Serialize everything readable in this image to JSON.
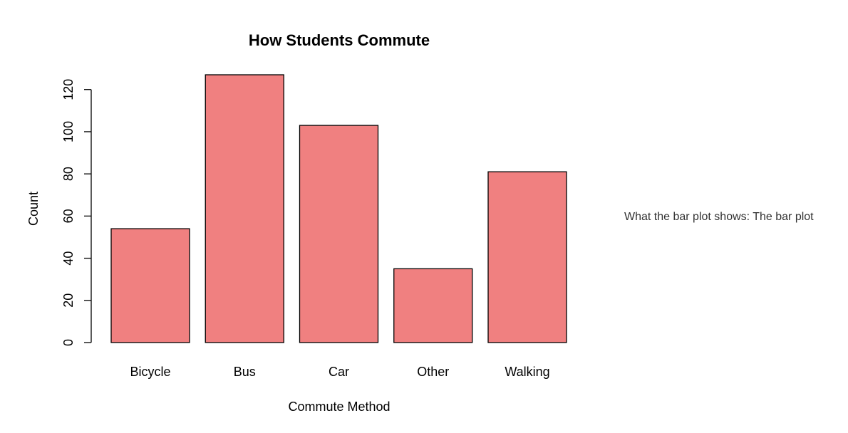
{
  "chart_data": {
    "type": "bar",
    "title": "How Students Commute",
    "xlabel": "Commute Method",
    "ylabel": "Count",
    "categories": [
      "Bicycle",
      "Bus",
      "Car",
      "Other",
      "Walking"
    ],
    "values": [
      54,
      127,
      103,
      35,
      81
    ],
    "ylim": [
      0,
      127
    ],
    "yticks": [
      "0",
      "20",
      "40",
      "60",
      "80",
      "100",
      "120"
    ],
    "grid": false,
    "bar_color": "#F08080",
    "bar_border_color": "#000000"
  },
  "side_note": {
    "text": "What the bar plot shows: The bar plot"
  }
}
